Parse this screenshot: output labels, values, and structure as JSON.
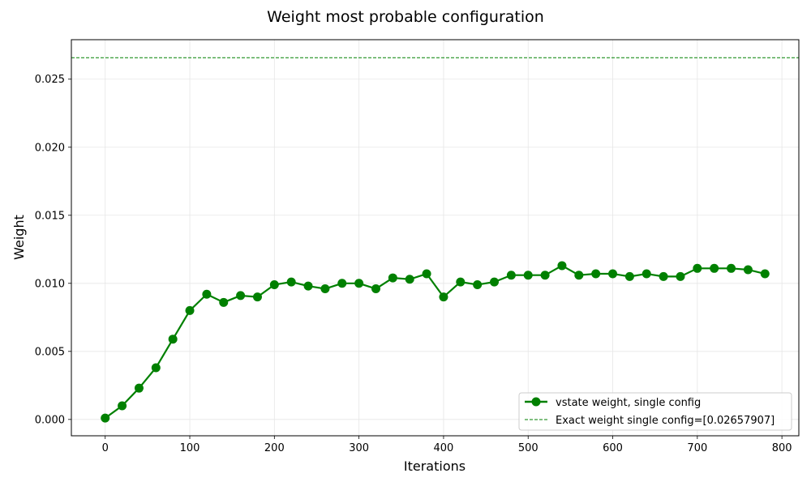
{
  "chart_data": {
    "type": "line",
    "title": "Weight most probable configuration",
    "xlabel": "Iterations",
    "ylabel": "Weight",
    "xlim": [
      -40,
      820
    ],
    "ylim": [
      -0.0012,
      0.0279
    ],
    "xticks": [
      0,
      100,
      200,
      300,
      400,
      500,
      600,
      700,
      800
    ],
    "yticks": [
      0.0,
      0.005,
      0.01,
      0.015,
      0.02,
      0.025
    ],
    "xtick_labels": [
      "0",
      "100",
      "200",
      "300",
      "400",
      "500",
      "600",
      "700",
      "800"
    ],
    "ytick_labels": [
      "0.000",
      "0.005",
      "0.010",
      "0.015",
      "0.020",
      "0.025"
    ],
    "grid": true,
    "legend_position": "lower-right",
    "series": [
      {
        "name": "vstate weight, single config",
        "color": "#008000",
        "marker": "circle",
        "x": [
          0,
          20,
          40,
          60,
          80,
          100,
          120,
          140,
          160,
          180,
          200,
          220,
          240,
          260,
          280,
          300,
          320,
          340,
          360,
          380,
          400,
          420,
          440,
          460,
          480,
          500,
          520,
          540,
          560,
          580,
          600,
          620,
          640,
          660,
          680,
          700,
          720,
          740,
          760,
          780
        ],
        "y": [
          0.0001,
          0.001,
          0.0023,
          0.0038,
          0.0059,
          0.008,
          0.0092,
          0.0086,
          0.0091,
          0.009,
          0.0099,
          0.0101,
          0.0098,
          0.0096,
          0.01,
          0.01,
          0.0096,
          0.0104,
          0.0103,
          0.0107,
          0.009,
          0.0101,
          0.0099,
          0.0101,
          0.0106,
          0.0106,
          0.0106,
          0.0113,
          0.0106,
          0.0107,
          0.0107,
          0.0105,
          0.0107,
          0.0105,
          0.0105,
          0.0111,
          0.0111,
          0.0111,
          0.011,
          0.0107
        ]
      }
    ],
    "reference_lines": [
      {
        "name": "Exact weight single config=[0.02657907]",
        "y": 0.02657907,
        "color": "#008000",
        "style": "dashed"
      }
    ]
  }
}
